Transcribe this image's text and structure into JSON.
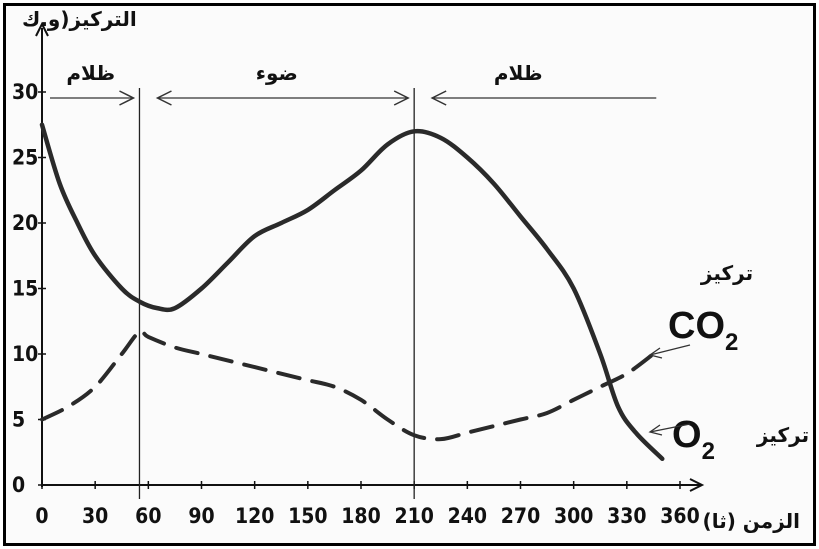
{
  "chart_data": {
    "type": "line",
    "y_axis_label": "التركيز(و.ك",
    "x_axis_label": "الزمن (ثا)",
    "xlim": [
      0,
      360
    ],
    "ylim": [
      0,
      30
    ],
    "x_ticks": [
      0,
      30,
      60,
      90,
      120,
      150,
      180,
      210,
      240,
      270,
      300,
      330,
      360
    ],
    "y_ticks": [
      0,
      5,
      10,
      15,
      20,
      25,
      30
    ],
    "y_tick_labels": [
      "0",
      "5",
      "10",
      "15",
      "20",
      "25",
      "30"
    ],
    "phases": [
      {
        "label": "ظلام",
        "from": 0,
        "to": 55
      },
      {
        "label": "ضوء",
        "from": 55,
        "to": 210
      },
      {
        "label": "ظلام",
        "from": 210,
        "to": 350
      }
    ],
    "series": [
      {
        "name_word": "تركيز",
        "name_formula": "O",
        "name_subscript": "2",
        "style": "solid",
        "x": [
          0,
          10,
          20,
          30,
          45,
          55,
          65,
          75,
          90,
          105,
          120,
          135,
          150,
          165,
          180,
          195,
          210,
          225,
          240,
          255,
          270,
          285,
          300,
          315,
          325,
          335,
          350
        ],
        "y": [
          27.5,
          23,
          20,
          17.5,
          15,
          14,
          13.5,
          13.5,
          15,
          17,
          19,
          20,
          21,
          22.5,
          24,
          26,
          27,
          26.5,
          25,
          23,
          20.5,
          18,
          15,
          10,
          6,
          4,
          2
        ]
      },
      {
        "name_word": "تركيز",
        "name_formula": "CO",
        "name_subscript": "2",
        "style": "dashed",
        "x": [
          0,
          15,
          30,
          45,
          55,
          60,
          75,
          90,
          105,
          120,
          135,
          150,
          165,
          180,
          195,
          210,
          225,
          240,
          255,
          270,
          285,
          300,
          315,
          330,
          345
        ],
        "y": [
          5,
          6,
          7.5,
          10,
          11.7,
          11.3,
          10.5,
          10,
          9.5,
          9,
          8.5,
          8,
          7.5,
          6.5,
          5,
          3.8,
          3.5,
          4,
          4.5,
          5,
          5.5,
          6.5,
          7.5,
          8.5,
          10
        ]
      }
    ]
  }
}
